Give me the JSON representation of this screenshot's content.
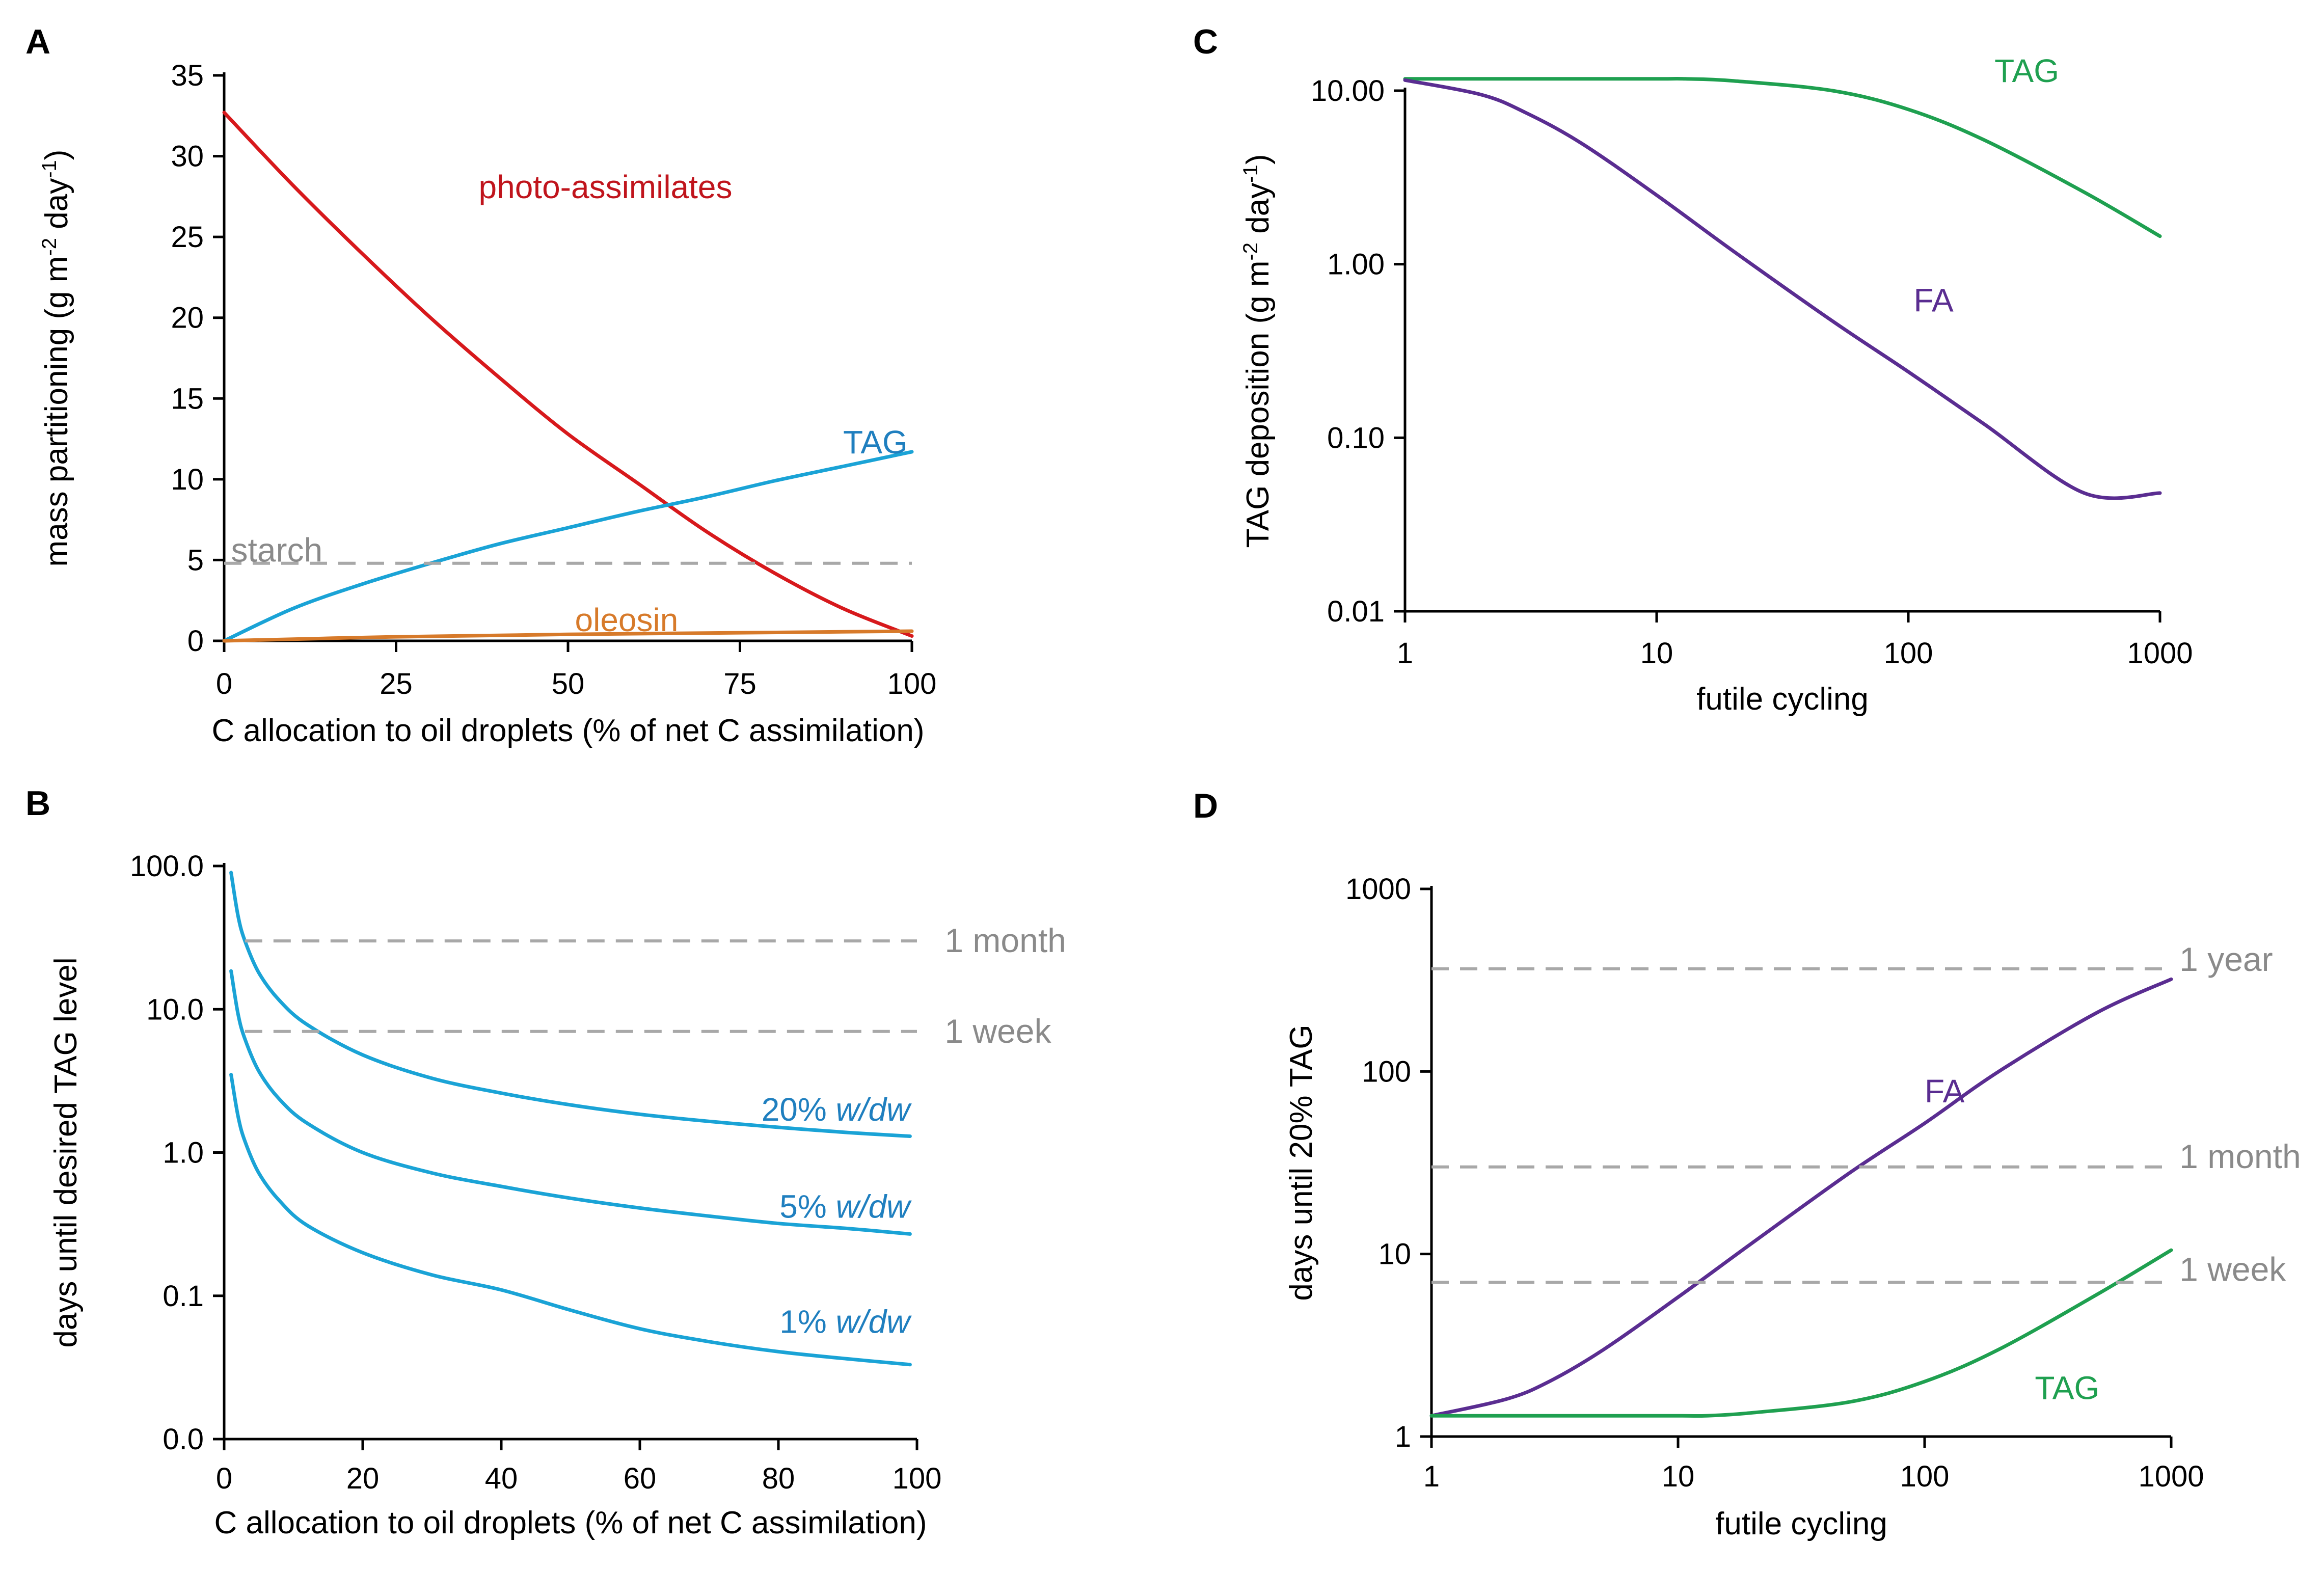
{
  "chart_data": [
    {
      "panel": "A",
      "type": "line",
      "xlabel": "C allocation to oil droplets (% of net C assimilation)",
      "ylabel": "mass partitioning (g m-2 day-1)",
      "ylabel_parts": {
        "main": "mass partitioning (g m",
        "exp1": "-2",
        "mid": " day",
        "exp2": "-1",
        "end": ")"
      },
      "x_scale": "linear",
      "y_scale": "linear",
      "xlim": [
        0,
        100
      ],
      "ylim": [
        0,
        35
      ],
      "xticks": [
        0,
        25,
        50,
        75,
        100
      ],
      "xtick_labels": [
        "0",
        "25",
        "50",
        "75",
        "100"
      ],
      "yticks": [
        0,
        5,
        10,
        15,
        20,
        25,
        30,
        35
      ],
      "ytick_labels": [
        "0",
        "5",
        "10",
        "15",
        "20",
        "25",
        "30",
        "35"
      ],
      "series": [
        {
          "name": "photo-assimilates",
          "color": "#d7191c",
          "dashed": false,
          "x": [
            0,
            10,
            20,
            30,
            40,
            50,
            60,
            70,
            80,
            90,
            100
          ],
          "y": [
            32.7,
            28.2,
            24.0,
            20.0,
            16.3,
            12.8,
            9.8,
            6.8,
            4.2,
            2.0,
            0.3
          ]
        },
        {
          "name": "TAG",
          "color": "#1aa3d6",
          "dashed": false,
          "x": [
            0,
            10,
            20,
            30,
            40,
            50,
            60,
            70,
            80,
            90,
            100
          ],
          "y": [
            0.0,
            2.0,
            3.5,
            4.8,
            6.0,
            7.0,
            8.0,
            8.9,
            9.9,
            10.8,
            11.7
          ]
        },
        {
          "name": "oleosin",
          "color": "#d77a2a",
          "dashed": false,
          "x": [
            0,
            25,
            50,
            75,
            100
          ],
          "y": [
            0.0,
            0.25,
            0.4,
            0.5,
            0.6
          ]
        },
        {
          "name": "starch",
          "color": "#a8a8a8",
          "dashed": true,
          "x": [
            0,
            100
          ],
          "y": [
            4.8,
            4.8
          ]
        }
      ],
      "annotations": [
        {
          "text": "photo-assimilates",
          "color": "#c0141c",
          "x": 37,
          "y": 28.1
        },
        {
          "text": "TAG",
          "color": "#1f7fbf",
          "x": 90,
          "y": 12.3
        },
        {
          "text": "oleosin",
          "color": "#d77a2a",
          "x": 51,
          "y": 1.3
        },
        {
          "text": "starch",
          "color": "#8a8a8a",
          "x": 1,
          "y": 5.6
        }
      ]
    },
    {
      "panel": "B",
      "type": "line",
      "xlabel": "C allocation to oil droplets (% of net C assimilation)",
      "ylabel": "days until desired TAG level",
      "x_scale": "linear",
      "y_scale": "log-like",
      "xlim": [
        0,
        100
      ],
      "ylim": [
        0,
        100
      ],
      "xticks": [
        0,
        20,
        40,
        60,
        80,
        100
      ],
      "xtick_labels": [
        "0",
        "20",
        "40",
        "60",
        "80",
        "100"
      ],
      "yticks": [
        0,
        0.1,
        1,
        10,
        100
      ],
      "ytick_labels": [
        "0.0",
        "0.1",
        "1.0",
        "10.0",
        "100.0"
      ],
      "series": [
        {
          "name": "20% w/dw",
          "color": "#1aa3d6",
          "dashed": false,
          "x": [
            1,
            2,
            3,
            5,
            8,
            12,
            20,
            30,
            40,
            50,
            60,
            70,
            80,
            90,
            99
          ],
          "y": [
            90,
            45,
            30,
            18,
            11.5,
            7.8,
            4.8,
            3.3,
            2.6,
            2.15,
            1.85,
            1.65,
            1.5,
            1.38,
            1.3
          ]
        },
        {
          "name": "5% w/dw",
          "color": "#1aa3d6",
          "dashed": false,
          "x": [
            1,
            2,
            3,
            5,
            8,
            12,
            20,
            30,
            40,
            50,
            60,
            70,
            80,
            90,
            99
          ],
          "y": [
            18.5,
            9.3,
            6.2,
            3.7,
            2.35,
            1.6,
            1.0,
            0.72,
            0.58,
            0.48,
            0.41,
            0.36,
            0.32,
            0.295,
            0.27
          ]
        },
        {
          "name": "1% w/dw",
          "color": "#1aa3d6",
          "dashed": false,
          "x": [
            1,
            2,
            3,
            5,
            8,
            12,
            20,
            30,
            40,
            50,
            60,
            70,
            80,
            90,
            99
          ],
          "y": [
            3.5,
            1.8,
            1.2,
            0.72,
            0.46,
            0.31,
            0.2,
            0.14,
            0.11,
            0.09,
            0.077,
            0.068,
            0.061,
            0.056,
            0.052
          ]
        },
        {
          "name": "1 month",
          "color": "#a8a8a8",
          "dashed": true,
          "x": [
            3,
            100
          ],
          "y": [
            30,
            30
          ]
        },
        {
          "name": "1 week",
          "color": "#a8a8a8",
          "dashed": true,
          "x": [
            3,
            100
          ],
          "y": [
            7,
            7
          ]
        }
      ],
      "annotations": [
        {
          "text": "20% ",
          "italic": "w/dw",
          "color": "#1f7fbf",
          "x": 99,
          "y": 2.0
        },
        {
          "text": "5% ",
          "italic": "w/dw",
          "color": "#1f7fbf",
          "x": 99,
          "y": 0.42
        },
        {
          "text": "1% ",
          "italic": "w/dw",
          "color": "#1f7fbf",
          "x": 99,
          "y": 0.082
        },
        {
          "text": "1 month",
          "color": "#8a8a8a",
          "x": 104,
          "y": 30
        },
        {
          "text": "1 week",
          "color": "#8a8a8a",
          "x": 104,
          "y": 7
        }
      ]
    },
    {
      "panel": "C",
      "type": "line",
      "xlabel": "futile cycling",
      "ylabel": "TAG deposition (g m-2 day-1)",
      "ylabel_parts": {
        "main": "TAG deposition (g m",
        "exp1": "-2",
        "mid": " day",
        "exp2": "-1",
        "end": ")"
      },
      "x_scale": "log",
      "y_scale": "log",
      "xlim": [
        1,
        1000
      ],
      "ylim": [
        0.01,
        10
      ],
      "xticks": [
        1,
        10,
        100,
        1000
      ],
      "xtick_labels": [
        "1",
        "10",
        "100",
        "1000"
      ],
      "yticks": [
        0.01,
        0.1,
        1,
        10
      ],
      "ytick_labels": [
        "0.01",
        "0.10",
        "1.00",
        "10.00"
      ],
      "series": [
        {
          "name": "TAG",
          "color": "#1fa050",
          "dashed": false,
          "x": [
            1,
            3,
            10,
            13,
            20,
            50,
            100,
            200,
            500,
            1000
          ],
          "y": [
            11.7,
            11.7,
            11.7,
            11.7,
            11.4,
            10.0,
            7.8,
            5.2,
            2.6,
            1.45
          ]
        },
        {
          "name": "FA",
          "color": "#5a2d91",
          "dashed": false,
          "x": [
            1,
            2,
            3,
            5,
            10,
            20,
            50,
            100,
            200,
            500,
            1000
          ],
          "y": [
            11.5,
            9.5,
            7.5,
            5.0,
            2.5,
            1.2,
            0.47,
            0.24,
            0.12,
            0.048,
            0.048
          ]
        }
      ],
      "annotations": [
        {
          "text": "TAG",
          "color": "#1fa050",
          "x": 220,
          "y": 13.0
        },
        {
          "text": "FA",
          "color": "#5a2d91",
          "x": 105,
          "y": 0.62
        }
      ]
    },
    {
      "panel": "D",
      "type": "line",
      "xlabel": "futile cycling",
      "ylabel": "days until 20% TAG",
      "x_scale": "log",
      "y_scale": "log",
      "xlim": [
        1,
        1000
      ],
      "ylim": [
        1,
        1000
      ],
      "xticks": [
        1,
        10,
        100,
        1000
      ],
      "xtick_labels": [
        "1",
        "10",
        "100",
        "1000"
      ],
      "yticks": [
        1,
        10,
        100,
        1000
      ],
      "ytick_labels": [
        "1",
        "10",
        "100",
        "1000"
      ],
      "series": [
        {
          "name": "FA",
          "color": "#5a2d91",
          "dashed": false,
          "x": [
            1,
            2,
            3,
            5,
            10,
            20,
            50,
            100,
            200,
            500,
            1000
          ],
          "y": [
            1.3,
            1.6,
            2.0,
            3.0,
            5.8,
            11.5,
            28.0,
            52.0,
            100,
            210,
            320
          ]
        },
        {
          "name": "TAG",
          "color": "#1fa050",
          "dashed": false,
          "x": [
            1,
            3,
            10,
            13,
            20,
            50,
            100,
            200,
            500,
            1000
          ],
          "y": [
            1.3,
            1.3,
            1.3,
            1.3,
            1.35,
            1.55,
            2.0,
            3.0,
            6.0,
            10.5
          ]
        },
        {
          "name": "1 year",
          "color": "#a8a8a8",
          "dashed": true,
          "x": [
            1,
            1000
          ],
          "y": [
            365,
            365
          ]
        },
        {
          "name": "1 month",
          "color": "#a8a8a8",
          "dashed": true,
          "x": [
            1,
            1000
          ],
          "y": [
            30,
            30
          ]
        },
        {
          "name": "1 week",
          "color": "#a8a8a8",
          "dashed": true,
          "x": [
            1,
            1000
          ],
          "y": [
            7,
            7
          ]
        }
      ],
      "annotations": [
        {
          "text": "FA",
          "color": "#5a2d91",
          "x": 100,
          "y": 78
        },
        {
          "text": "TAG",
          "color": "#1fa050",
          "x": 280,
          "y": 1.85
        },
        {
          "text": "1 year",
          "color": "#8a8a8a",
          "x": 1080,
          "y": 410
        },
        {
          "text": "1 month",
          "color": "#8a8a8a",
          "x": 1080,
          "y": 34
        },
        {
          "text": "1 week",
          "color": "#8a8a8a",
          "x": 1080,
          "y": 8.2
        }
      ]
    }
  ]
}
